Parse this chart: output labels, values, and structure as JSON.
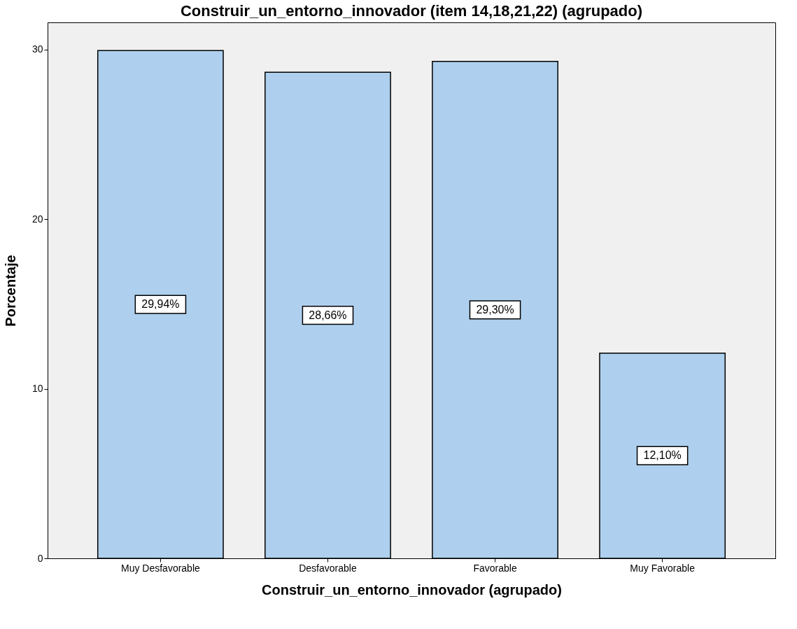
{
  "chart_data": {
    "type": "bar",
    "title": "Construir_un_entorno_innovador (item 14,18,21,22) (agrupado)",
    "xlabel": "Construir_un_entorno_innovador (agrupado)",
    "ylabel": "Porcentaje",
    "categories": [
      "Muy Desfavorable",
      "Desfavorable",
      "Favorable",
      "Muy Favorable"
    ],
    "values": [
      29.94,
      28.66,
      29.3,
      12.1
    ],
    "value_labels": [
      "29,94%",
      "28,66%",
      "29,30%",
      "12,10%"
    ],
    "color": "#aed0ee",
    "ylim": [
      0,
      31.6
    ],
    "yticks": [
      0,
      10,
      20,
      30
    ],
    "grid": false
  }
}
